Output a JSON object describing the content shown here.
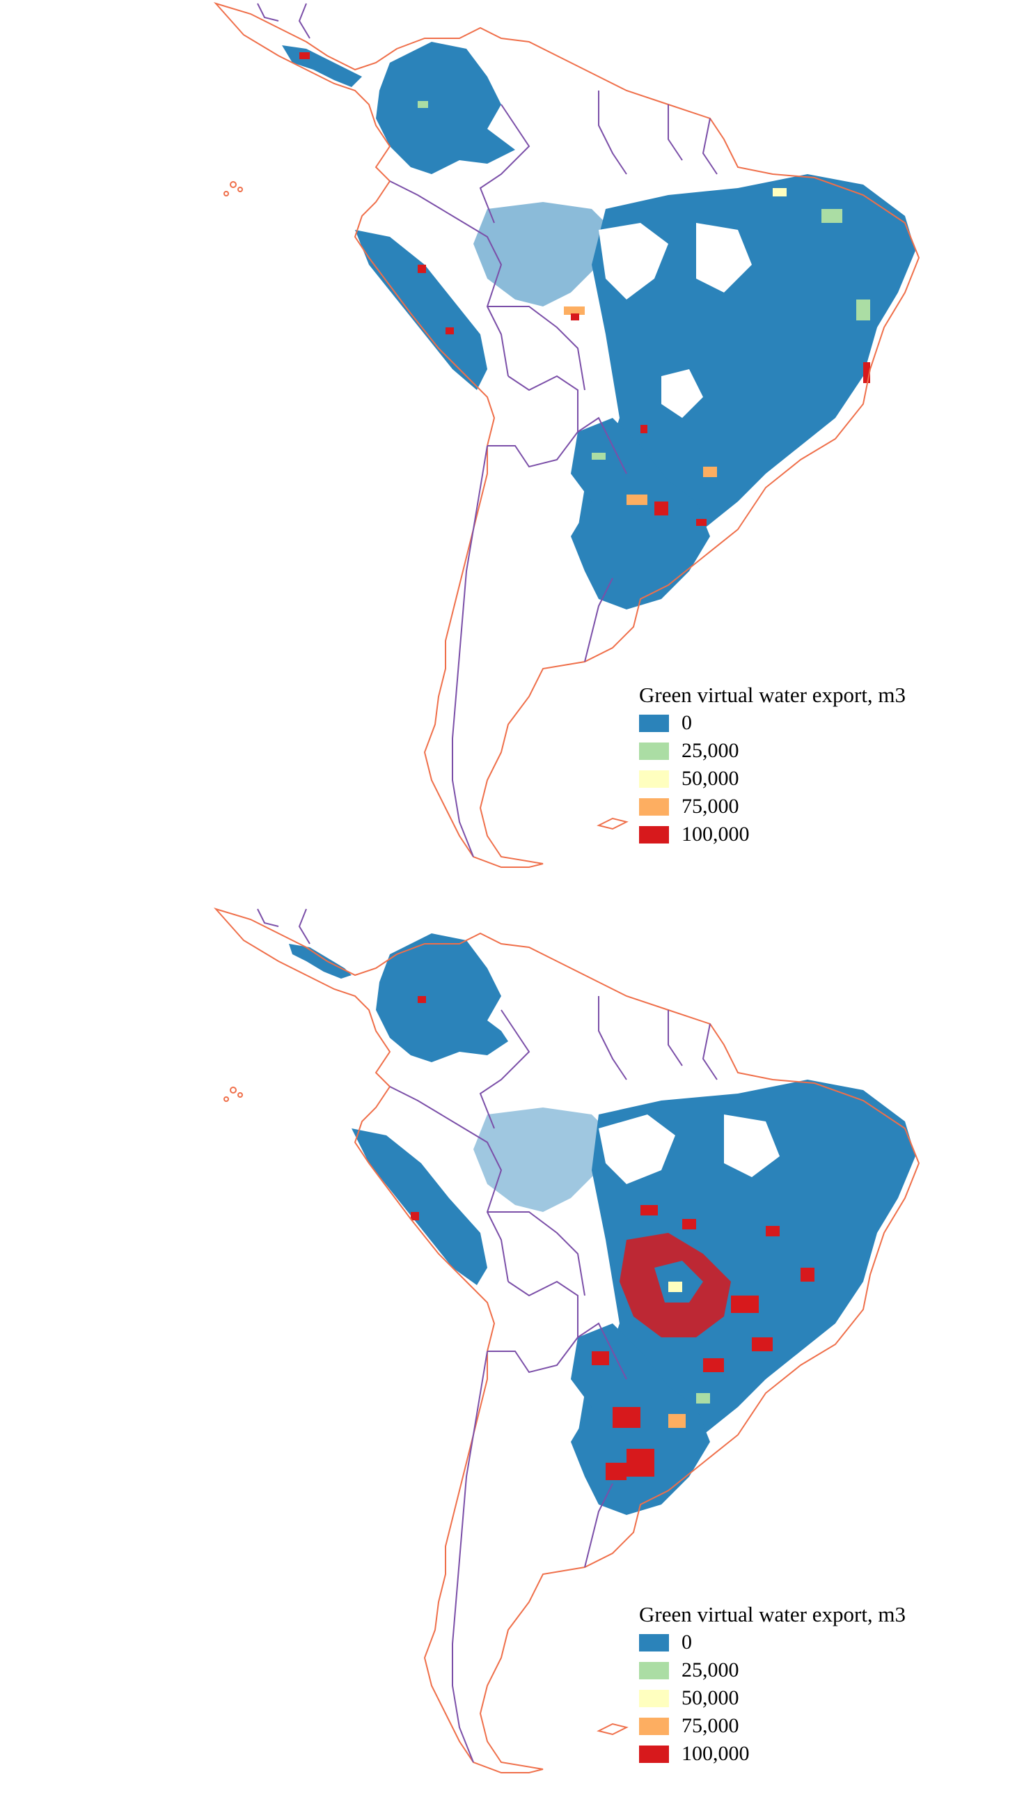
{
  "maps": [
    {
      "legend": {
        "title": "Green virtual water export, m3",
        "items": [
          {
            "label": "0",
            "color": "#2b83ba"
          },
          {
            "label": "25,000",
            "color": "#abdda4"
          },
          {
            "label": "50,000",
            "color": "#ffffbf"
          },
          {
            "label": "75,000",
            "color": "#fdae61"
          },
          {
            "label": "100,000",
            "color": "#d7191c"
          }
        ]
      }
    },
    {
      "legend": {
        "title": "Green virtual water export, m3",
        "items": [
          {
            "label": "0",
            "color": "#2b83ba"
          },
          {
            "label": "25,000",
            "color": "#abdda4"
          },
          {
            "label": "50,000",
            "color": "#ffffbf"
          },
          {
            "label": "75,000",
            "color": "#fdae61"
          },
          {
            "label": "100,000",
            "color": "#d7191c"
          }
        ]
      }
    }
  ],
  "colors": {
    "coastline": "#ef6f4a",
    "borders": "#7b4fa8"
  }
}
